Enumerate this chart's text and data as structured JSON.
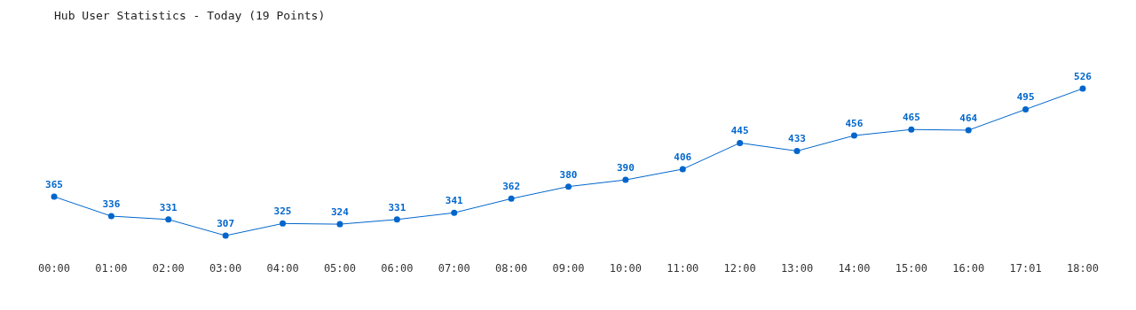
{
  "chart_data": {
    "type": "line",
    "title": "Hub User Statistics - Today (19 Points)",
    "categories": [
      "00:00",
      "01:00",
      "02:00",
      "03:00",
      "04:00",
      "05:00",
      "06:00",
      "07:00",
      "08:00",
      "09:00",
      "10:00",
      "11:00",
      "12:00",
      "13:00",
      "14:00",
      "15:00",
      "16:00",
      "17:01",
      "18:00"
    ],
    "series": [
      {
        "color": "#0066cc",
        "values": [
          365,
          336,
          331,
          307,
          325,
          324,
          331,
          341,
          362,
          380,
          390,
          406,
          445,
          433,
          456,
          465,
          464,
          495,
          526
        ]
      }
    ],
    "data_labels": true,
    "marker": "circle",
    "line_style": "solid"
  }
}
